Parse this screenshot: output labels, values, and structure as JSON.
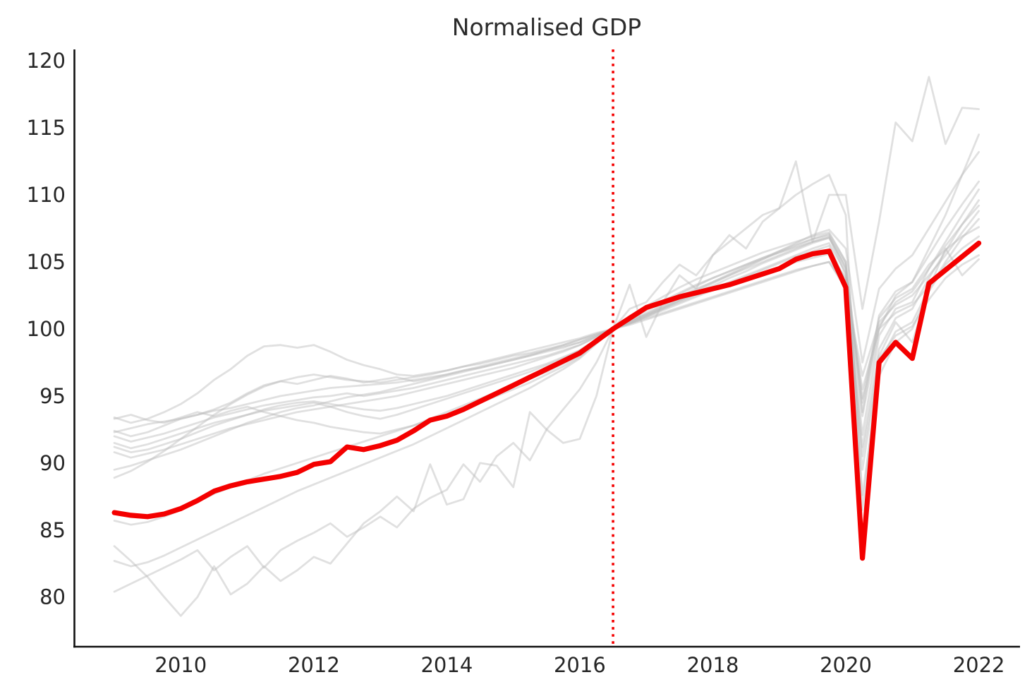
{
  "chart_data": {
    "type": "line",
    "title": "Normalised GDP",
    "xlabel": "",
    "ylabel": "",
    "legend": false,
    "grid": false,
    "x_ticks": [
      2010,
      2012,
      2014,
      2016,
      2018,
      2020,
      2022
    ],
    "y_ticks": [
      80,
      85,
      90,
      95,
      100,
      105,
      110,
      115,
      120
    ],
    "xlim": [
      2008.4,
      2022.62
    ],
    "ylim": [
      76.3,
      120.85
    ],
    "x_start": 2009.0,
    "x_step": 0.25,
    "reference_line": {
      "axis": "x",
      "x": 2016.5,
      "style": "dotted",
      "color": "#f40000",
      "note": "normalisation point where all series equal 100"
    },
    "colors": {
      "highlight": "#f40000",
      "background_stroke": "#bbbbbb",
      "spine": "#111111",
      "text": "#262626"
    },
    "highlight_series": {
      "name": "highlighted-gdp",
      "color": "#f40000",
      "values": [
        86.3,
        86.1,
        86.0,
        86.2,
        86.6,
        87.2,
        87.9,
        88.3,
        88.6,
        88.8,
        89.0,
        89.3,
        89.9,
        90.1,
        91.2,
        91.0,
        91.3,
        91.7,
        92.4,
        93.2,
        93.5,
        94.0,
        94.6,
        95.2,
        95.8,
        96.4,
        97.0,
        97.6,
        98.2,
        99.1,
        100.0,
        100.8,
        101.6,
        102.0,
        102.4,
        102.7,
        103.0,
        103.3,
        103.7,
        104.1,
        104.5,
        105.2,
        105.6,
        105.8,
        103.1,
        82.9,
        97.5,
        99.0,
        97.8,
        103.4,
        104.4,
        105.4,
        106.4
      ]
    },
    "background_series": [
      {
        "values": [
          93.4,
          93.0,
          93.3,
          93.8,
          94.4,
          95.2,
          96.2,
          97.0,
          98.0,
          98.7,
          98.8,
          98.6,
          98.8,
          98.3,
          97.7,
          97.3,
          97.0,
          96.6,
          96.5,
          96.7,
          96.9,
          97.2,
          97.4,
          97.7,
          98.0,
          98.2,
          98.5,
          98.8,
          99.2,
          99.6,
          100.0,
          100.5,
          101.0,
          101.6,
          102.2,
          102.8,
          103.4,
          104.0,
          104.6,
          105.2,
          105.8,
          106.4,
          107.0,
          107.4,
          106.0,
          97.5,
          103.0,
          104.5,
          105.5,
          107.5,
          109.5,
          111.5,
          113.2
        ]
      },
      {
        "values": [
          92.4,
          92.0,
          92.3,
          92.8,
          93.3,
          93.6,
          94.0,
          94.5,
          95.2,
          95.8,
          96.1,
          95.9,
          96.2,
          96.5,
          96.3,
          96.0,
          96.2,
          96.4,
          96.1,
          96.3,
          96.6,
          96.9,
          97.2,
          97.5,
          97.8,
          98.1,
          98.4,
          98.7,
          99.0,
          99.5,
          100.0,
          100.4,
          100.9,
          101.5,
          102.1,
          102.7,
          103.2,
          103.8,
          104.3,
          104.9,
          105.4,
          105.9,
          106.4,
          106.8,
          104.5,
          93.5,
          100.0,
          102.5,
          103.5,
          106.0,
          108.5,
          111.5,
          114.5
        ]
      },
      {
        "values": [
          83.8,
          82.7,
          81.5,
          80.0,
          78.6,
          80.0,
          82.3,
          80.2,
          81.0,
          82.3,
          81.2,
          82.0,
          83.0,
          82.5,
          84.0,
          85.5,
          86.4,
          87.5,
          86.4,
          89.9,
          86.9,
          87.3,
          90.0,
          89.8,
          88.2,
          93.8,
          92.5,
          91.5,
          91.8,
          95.0,
          100.0,
          103.3,
          99.4,
          102.0,
          104.0,
          103.0,
          105.5,
          107.0,
          106.0,
          108.0,
          109.0,
          112.5,
          106.5,
          110.0,
          110.0,
          101.5,
          108.0,
          115.4,
          114.0,
          118.8,
          113.8,
          116.5,
          116.4
        ]
      },
      {
        "values": [
          80.4,
          81.0,
          81.6,
          82.2,
          82.8,
          83.5,
          82.0,
          83.0,
          83.8,
          82.2,
          83.5,
          84.2,
          84.8,
          85.5,
          84.5,
          85.2,
          86.0,
          85.2,
          86.6,
          87.4,
          88.0,
          89.9,
          88.6,
          90.5,
          91.5,
          90.2,
          92.5,
          94.0,
          95.5,
          97.5,
          100.0,
          101.5,
          102.0,
          103.5,
          104.8,
          104.0,
          105.5,
          106.5,
          107.5,
          108.5,
          109.0,
          110.0,
          110.8,
          111.5,
          108.5,
          86.5,
          98.0,
          100.5,
          99.0,
          103.0,
          106.0,
          104.0,
          105.2
        ]
      },
      {
        "values": [
          92.0,
          91.6,
          91.9,
          92.2,
          92.6,
          93.0,
          93.4,
          93.7,
          94.0,
          94.3,
          94.5,
          94.7,
          94.9,
          95.0,
          95.2,
          95.0,
          95.2,
          95.4,
          95.6,
          95.9,
          96.2,
          96.5,
          96.8,
          97.1,
          97.4,
          97.7,
          98.0,
          98.4,
          98.8,
          99.4,
          100.0,
          100.5,
          101.1,
          101.7,
          102.3,
          102.9,
          103.5,
          104.1,
          104.7,
          105.2,
          105.7,
          106.2,
          106.7,
          107.1,
          105.0,
          93.8,
          101.0,
          102.8,
          103.5,
          105.5,
          107.5,
          109.3,
          111.0
        ]
      },
      {
        "values": [
          91.2,
          90.8,
          91.0,
          91.4,
          91.8,
          92.3,
          92.8,
          93.2,
          93.6,
          94.0,
          94.3,
          94.5,
          94.6,
          94.4,
          94.2,
          94.0,
          93.9,
          94.1,
          94.4,
          94.7,
          95.0,
          95.4,
          95.8,
          96.2,
          96.6,
          97.0,
          97.4,
          97.9,
          98.4,
          99.2,
          100.0,
          100.6,
          101.2,
          101.8,
          102.4,
          103.0,
          103.5,
          104.0,
          104.5,
          105.0,
          105.5,
          106.0,
          106.5,
          106.9,
          104.0,
          92.1,
          99.5,
          101.5,
          102.0,
          104.5,
          106.5,
          108.5,
          110.4
        ]
      },
      {
        "values": [
          89.5,
          89.8,
          90.2,
          90.6,
          91.0,
          91.5,
          92.0,
          92.5,
          93.0,
          93.4,
          93.8,
          94.1,
          94.3,
          94.6,
          94.9,
          95.1,
          95.3,
          95.6,
          95.9,
          96.2,
          96.5,
          96.8,
          97.1,
          97.4,
          97.7,
          98.0,
          98.4,
          98.8,
          99.2,
          99.6,
          100.0,
          100.4,
          100.9,
          101.4,
          101.9,
          102.4,
          102.9,
          103.4,
          103.9,
          104.4,
          104.9,
          105.4,
          105.8,
          106.2,
          103.5,
          91.2,
          98.5,
          100.8,
          101.5,
          103.8,
          105.8,
          107.8,
          109.6
        ]
      },
      {
        "values": [
          88.9,
          89.4,
          90.1,
          90.9,
          91.8,
          92.7,
          93.6,
          94.4,
          95.1,
          95.7,
          96.1,
          96.4,
          96.6,
          96.4,
          96.2,
          96.1,
          96.0,
          96.2,
          96.4,
          96.6,
          96.9,
          97.2,
          97.5,
          97.8,
          98.1,
          98.4,
          98.7,
          99.0,
          99.3,
          99.7,
          100.0,
          100.3,
          100.7,
          101.1,
          101.5,
          101.9,
          102.3,
          102.7,
          103.1,
          103.5,
          103.9,
          104.3,
          104.7,
          105.0,
          103.0,
          96.5,
          100.5,
          101.8,
          102.5,
          104.0,
          105.5,
          107.2,
          108.8
        ]
      },
      {
        "values": [
          85.7,
          85.4,
          85.6,
          86.0,
          86.5,
          87.1,
          87.7,
          88.2,
          88.7,
          89.2,
          89.6,
          90.0,
          90.4,
          90.8,
          91.2,
          91.6,
          92.0,
          92.4,
          92.8,
          93.3,
          93.8,
          94.3,
          94.8,
          95.3,
          95.8,
          96.3,
          96.8,
          97.4,
          98.0,
          99.0,
          100.0,
          100.7,
          101.4,
          102.0,
          102.6,
          103.2,
          103.8,
          104.3,
          104.8,
          105.3,
          105.8,
          106.3,
          106.7,
          107.0,
          104.5,
          89.5,
          97.5,
          99.8,
          100.5,
          103.0,
          105.0,
          106.8,
          108.2
        ]
      },
      {
        "values": [
          93.3,
          93.6,
          93.2,
          93.0,
          93.4,
          93.8,
          93.5,
          93.9,
          94.2,
          93.8,
          93.5,
          93.2,
          93.0,
          92.7,
          92.5,
          92.3,
          92.2,
          92.5,
          92.8,
          93.2,
          93.6,
          94.0,
          94.5,
          95.0,
          95.5,
          96.0,
          96.6,
          97.2,
          97.9,
          99.0,
          100.0,
          100.8,
          101.5,
          102.1,
          102.7,
          103.3,
          103.8,
          104.3,
          104.8,
          105.3,
          105.7,
          106.1,
          106.5,
          106.8,
          104.8,
          94.8,
          100.8,
          102.3,
          103.0,
          104.8,
          105.9,
          106.9,
          107.6
        ]
      },
      {
        "values": [
          82.7,
          82.3,
          82.6,
          83.1,
          83.7,
          84.3,
          84.9,
          85.5,
          86.1,
          86.7,
          87.3,
          87.9,
          88.4,
          88.9,
          89.4,
          89.9,
          90.4,
          90.9,
          91.4,
          92.0,
          92.6,
          93.2,
          93.8,
          94.4,
          95.0,
          95.6,
          96.3,
          97.0,
          97.8,
          98.9,
          100.0,
          100.9,
          101.7,
          102.4,
          103.1,
          103.7,
          104.2,
          104.7,
          105.2,
          105.7,
          106.1,
          106.5,
          106.9,
          107.2,
          105.0,
          87.6,
          96.5,
          99.0,
          100.0,
          102.8,
          104.8,
          106.0,
          106.9
        ]
      },
      {
        "values": [
          92.3,
          92.6,
          92.9,
          93.1,
          93.3,
          93.6,
          93.9,
          94.1,
          94.4,
          94.7,
          95.0,
          95.2,
          95.4,
          95.6,
          95.7,
          95.8,
          95.9,
          96.0,
          96.2,
          96.4,
          96.6,
          96.9,
          97.1,
          97.4,
          97.7,
          98.0,
          98.3,
          98.6,
          99.0,
          99.5,
          100.0,
          100.4,
          100.8,
          101.2,
          101.6,
          102.0,
          102.4,
          102.8,
          103.2,
          103.6,
          104.0,
          104.4,
          104.7,
          105.0,
          103.2,
          95.5,
          100.0,
          101.2,
          101.8,
          103.2,
          104.3,
          105.3,
          106.2
        ]
      },
      {
        "values": [
          91.5,
          91.1,
          91.4,
          91.8,
          92.2,
          92.6,
          93.0,
          93.3,
          93.6,
          93.9,
          94.1,
          94.3,
          94.5,
          94.2,
          93.8,
          93.5,
          93.3,
          93.6,
          94.0,
          94.4,
          94.8,
          95.2,
          95.6,
          96.0,
          96.4,
          96.8,
          97.3,
          97.8,
          98.4,
          99.2,
          100.0,
          100.6,
          101.1,
          101.6,
          102.1,
          102.6,
          103.0,
          103.4,
          103.8,
          104.2,
          104.6,
          105.0,
          105.3,
          105.6,
          103.8,
          90.5,
          97.8,
          99.5,
          100.2,
          102.2,
          103.8,
          104.8,
          105.5
        ]
      },
      {
        "values": [
          90.8,
          90.4,
          90.7,
          91.0,
          91.4,
          91.8,
          92.2,
          92.6,
          92.9,
          93.2,
          93.5,
          93.8,
          94.0,
          94.2,
          94.4,
          94.6,
          94.8,
          95.0,
          95.3,
          95.6,
          95.9,
          96.2,
          96.5,
          96.8,
          97.1,
          97.5,
          97.9,
          98.3,
          98.8,
          99.4,
          100.0,
          100.5,
          101.0,
          101.5,
          102.0,
          102.5,
          103.0,
          103.5,
          104.0,
          104.5,
          105.0,
          105.5,
          106.0,
          106.4,
          104.2,
          94.5,
          100.2,
          102.0,
          102.8,
          104.5,
          106.2,
          107.8,
          109.2
        ]
      }
    ]
  }
}
